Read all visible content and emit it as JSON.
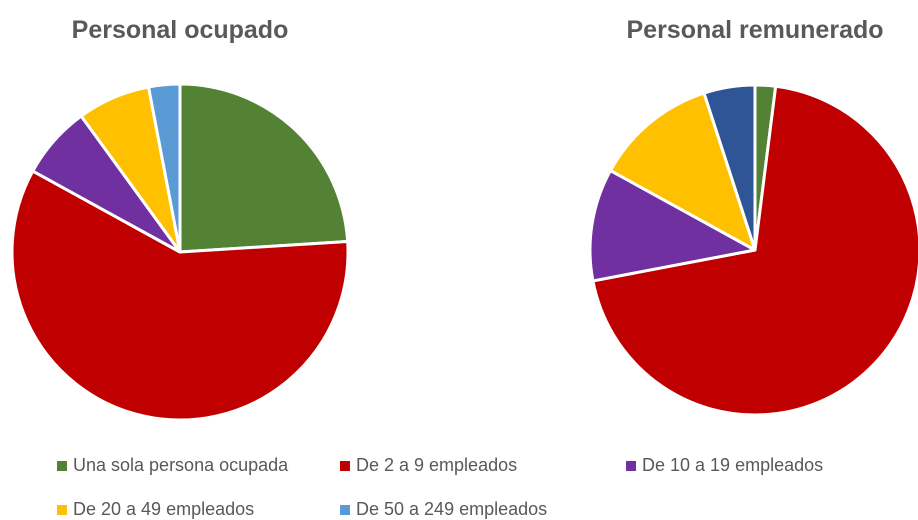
{
  "chart_data": [
    {
      "type": "pie",
      "title": "Personal ocupado",
      "categories": [
        "Una sola persona ocupada",
        "De 2 a 9 empleados",
        "De 10 a 19 empleados",
        "De 20 a 49 empleados",
        "De 50 a 249 empleados"
      ],
      "values": [
        24,
        59,
        7,
        7,
        3
      ],
      "colors": [
        "#548235",
        "#c00000",
        "#7030a0",
        "#ffc000",
        "#5b9bd5"
      ]
    },
    {
      "type": "pie",
      "title": "Personal remunerado",
      "values": [
        2,
        70,
        11,
        12,
        5
      ],
      "colors": [
        "#548235",
        "#c00000",
        "#7030a0",
        "#ffc000",
        "#2f5597"
      ]
    }
  ]
}
